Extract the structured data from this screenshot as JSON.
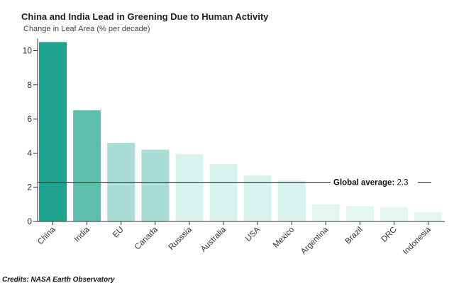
{
  "chart_data": {
    "type": "bar",
    "title": "China and India Lead in Greening Due to Human Activity",
    "ylabel": "Change in Leaf Area (% per decade)",
    "xlabel": "",
    "categories": [
      "China",
      "India",
      "EU",
      "Canada",
      "Russsia",
      "Australia",
      "USA",
      "Mexico",
      "Argentina",
      "Brazil",
      "DRC",
      "Indonesia"
    ],
    "values": [
      10.5,
      6.5,
      4.6,
      4.2,
      3.95,
      3.35,
      2.7,
      2.4,
      1.0,
      0.9,
      0.85,
      0.55
    ],
    "colors": [
      "#21a48f",
      "#5cbfad",
      "#a9ddd5",
      "#a9ddd5",
      "#daf2ee",
      "#daf2ee",
      "#daf2ee",
      "#daf2ee",
      "#e4f5f2",
      "#e4f5f2",
      "#e4f5f2",
      "#e4f5f2"
    ],
    "yticks": [
      0,
      2,
      4,
      6,
      8,
      10
    ],
    "ylim": [
      0,
      10.7
    ],
    "reference_line": {
      "label": "Global average:",
      "value": 2.3,
      "value_label": "2.3"
    }
  },
  "credits": "Credits: NASA Earth Observatory",
  "axis_color": "#333333"
}
